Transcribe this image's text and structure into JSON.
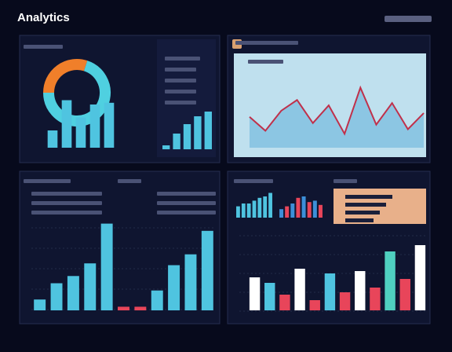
{
  "header": {
    "title": "Analytics"
  },
  "panels": [
    {
      "type": "donut",
      "values": [
        30,
        70
      ],
      "colors": [
        "#f07f2a",
        "#4fd0e0"
      ]
    },
    {
      "type": "bar",
      "values": [
        20,
        55,
        35,
        50,
        52
      ],
      "colors": [
        "#4fc4e0"
      ]
    },
    {
      "type": "bar",
      "values": [
        5,
        20,
        32,
        42,
        48
      ],
      "colors": [
        "#4fc4e0"
      ]
    },
    {
      "type": "area",
      "values": [
        40,
        22,
        48,
        62,
        32,
        55,
        18,
        78,
        30,
        58,
        24,
        45
      ],
      "color": "#7fbfe0",
      "line": "#c0304a"
    },
    {
      "type": "bar",
      "values": [
        12,
        30,
        38,
        52,
        96,
        4,
        4,
        22,
        50,
        62,
        88
      ],
      "colors": [
        "#4fc4e0",
        "#4fc4e0",
        "#4fc4e0",
        "#4fc4e0",
        "#4fc4e0",
        "#e8455a",
        "#e8455a",
        "#4fc4e0",
        "#4fc4e0",
        "#4fc4e0",
        "#4fc4e0"
      ]
    },
    {
      "type": "bar",
      "values": [
        16,
        20,
        20,
        24,
        28,
        30,
        35
      ],
      "colors": [
        "#4fc4e0"
      ]
    },
    {
      "type": "bar",
      "values": [
        12,
        16,
        20,
        28,
        30,
        22,
        24,
        18
      ],
      "colors": [
        "#3d8fd8",
        "#e8455a"
      ]
    },
    {
      "type": "bar",
      "values": [
        42,
        35,
        20,
        53,
        13,
        47,
        23,
        50,
        29,
        75,
        40,
        83
      ],
      "colors": [
        "#ffffff",
        "#4fc4e0",
        "#e8455a",
        "#ffffff",
        "#e8455a",
        "#4fc4e0",
        "#e8455a",
        "#ffffff",
        "#e8455a",
        "#4fd0c0",
        "#e8455a",
        "#ffffff"
      ]
    }
  ]
}
